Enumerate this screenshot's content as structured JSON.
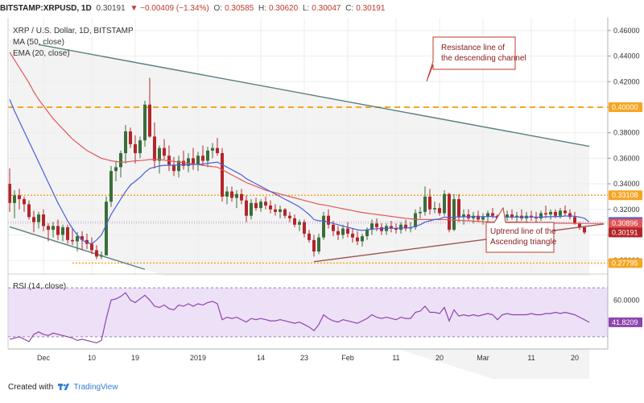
{
  "header": {
    "symbol": "BITSTAMP:XRPUSD, 1D",
    "last": "0.30191",
    "change": "▼ −0.00409 (−1.34%)",
    "o_label": "O:",
    "o_val": "0.30585",
    "h_label": "H:",
    "h_val": "0.30620",
    "l_label": "L:",
    "l_val": "0.30047",
    "c_label": "C:",
    "c_val": "0.30191"
  },
  "legend": {
    "title": "XRP / U.S. Dollar, 1D, BITSTAMP",
    "ma": "MA (50, close)",
    "ema": "EMA (20, close)"
  },
  "annotations": {
    "resistance": [
      "Resistance line of",
      "the descending channel"
    ],
    "uptrend": [
      "Uptrend line of the",
      "Ascending triangle"
    ]
  },
  "footer": {
    "prefix": "Created with",
    "brand": "TradingView"
  },
  "colors": {
    "bull": "#3a6e3a",
    "bear": "#b5242a",
    "ma": "#e15759",
    "ema": "#4a5fd8",
    "level": "#f5a623",
    "rsi": "#8e44ad"
  },
  "chart_data": {
    "type": "candlestick",
    "title": "XRP / U.S. Dollar, 1D, BITSTAMP",
    "y_axis": [
      "0.46000",
      "0.44000",
      "0.42000",
      "0.40000",
      "0.38000",
      "0.36000",
      "0.34000",
      "0.32000",
      "0.30000",
      "0.28000"
    ],
    "ylim": [
      0.27,
      0.47
    ],
    "x_ticks": [
      {
        "label": "Dec",
        "day": 7
      },
      {
        "label": "10",
        "day": 17
      },
      {
        "label": "19",
        "day": 26
      },
      {
        "label": "2019",
        "day": 39
      },
      {
        "label": "14",
        "day": 52
      },
      {
        "label": "23",
        "day": 61
      },
      {
        "label": "Feb",
        "day": 70
      },
      {
        "label": "11",
        "day": 80
      },
      {
        "label": "20",
        "day": 89
      },
      {
        "label": "Mar",
        "day": 98
      },
      {
        "label": "11",
        "day": 108
      },
      {
        "label": "20",
        "day": 117
      }
    ],
    "price_tags": [
      {
        "value": 0.4,
        "label": "0.40000",
        "color": "#f5a623"
      },
      {
        "value": 0.33108,
        "label": "0.33108",
        "color": "#f5a623"
      },
      {
        "value": 0.31018,
        "label": "0.31018",
        "color": "#4a5fd8"
      },
      {
        "value": 0.30896,
        "label": "0.30896",
        "color": "#e15759"
      },
      {
        "value": 0.30191,
        "label": "0.30191",
        "color": "#b5242a"
      },
      {
        "value": 0.27795,
        "label": "0.27795",
        "color": "#f5a623"
      }
    ],
    "levels": [
      {
        "value": 0.4,
        "style": "dashed"
      },
      {
        "value": 0.33108,
        "style": "dotted"
      },
      {
        "value": 0.27795,
        "style": "dotted"
      }
    ],
    "trendlines": [
      {
        "name": "Resistance line of the descending channel",
        "from": [
          6,
          0.449
        ],
        "to": [
          120,
          0.3693
        ]
      },
      {
        "name": "Lower channel line",
        "from": [
          0,
          0.3063
        ],
        "to": [
          28,
          0.273
        ]
      },
      {
        "name": "Uptrend line of the Ascending triangle",
        "from": [
          63,
          0.279
        ],
        "to": [
          123,
          0.3085
        ]
      }
    ],
    "ohlc": [
      [
        0.34,
        0.352,
        0.318,
        0.325
      ],
      [
        0.325,
        0.335,
        0.313,
        0.331
      ],
      [
        0.331,
        0.336,
        0.32,
        0.328
      ],
      [
        0.328,
        0.33,
        0.318,
        0.324
      ],
      [
        0.324,
        0.327,
        0.312,
        0.314
      ],
      [
        0.314,
        0.319,
        0.302,
        0.31
      ],
      [
        0.31,
        0.318,
        0.305,
        0.316
      ],
      [
        0.316,
        0.32,
        0.303,
        0.307
      ],
      [
        0.307,
        0.309,
        0.295,
        0.304
      ],
      [
        0.304,
        0.31,
        0.298,
        0.307
      ],
      [
        0.307,
        0.312,
        0.296,
        0.3
      ],
      [
        0.3,
        0.308,
        0.295,
        0.306
      ],
      [
        0.306,
        0.308,
        0.293,
        0.296
      ],
      [
        0.296,
        0.305,
        0.292,
        0.295
      ],
      [
        0.295,
        0.302,
        0.287,
        0.299
      ],
      [
        0.299,
        0.303,
        0.288,
        0.296
      ],
      [
        0.296,
        0.301,
        0.289,
        0.293
      ],
      [
        0.293,
        0.298,
        0.285,
        0.288
      ],
      [
        0.288,
        0.292,
        0.281,
        0.283
      ],
      [
        0.283,
        0.287,
        0.281,
        0.284
      ],
      [
        0.284,
        0.33,
        0.284,
        0.326
      ],
      [
        0.326,
        0.354,
        0.322,
        0.35
      ],
      [
        0.35,
        0.358,
        0.342,
        0.353
      ],
      [
        0.353,
        0.366,
        0.345,
        0.364
      ],
      [
        0.364,
        0.386,
        0.356,
        0.381
      ],
      [
        0.381,
        0.384,
        0.368,
        0.371
      ],
      [
        0.371,
        0.378,
        0.356,
        0.364
      ],
      [
        0.364,
        0.377,
        0.36,
        0.374
      ],
      [
        0.374,
        0.405,
        0.369,
        0.402
      ],
      [
        0.402,
        0.423,
        0.376,
        0.377
      ],
      [
        0.377,
        0.388,
        0.352,
        0.358
      ],
      [
        0.358,
        0.37,
        0.348,
        0.368
      ],
      [
        0.368,
        0.375,
        0.359,
        0.362
      ],
      [
        0.362,
        0.37,
        0.35,
        0.355
      ],
      [
        0.355,
        0.361,
        0.346,
        0.35
      ],
      [
        0.35,
        0.362,
        0.345,
        0.358
      ],
      [
        0.358,
        0.366,
        0.351,
        0.354
      ],
      [
        0.354,
        0.364,
        0.349,
        0.36
      ],
      [
        0.36,
        0.368,
        0.351,
        0.355
      ],
      [
        0.355,
        0.365,
        0.35,
        0.362
      ],
      [
        0.362,
        0.37,
        0.354,
        0.358
      ],
      [
        0.358,
        0.369,
        0.353,
        0.366
      ],
      [
        0.366,
        0.372,
        0.36,
        0.368
      ],
      [
        0.368,
        0.376,
        0.362,
        0.364
      ],
      [
        0.364,
        0.368,
        0.326,
        0.33
      ],
      [
        0.33,
        0.338,
        0.324,
        0.334
      ],
      [
        0.334,
        0.338,
        0.326,
        0.329
      ],
      [
        0.329,
        0.335,
        0.321,
        0.332
      ],
      [
        0.332,
        0.336,
        0.324,
        0.327
      ],
      [
        0.327,
        0.331,
        0.31,
        0.315
      ],
      [
        0.315,
        0.328,
        0.312,
        0.325
      ],
      [
        0.325,
        0.329,
        0.319,
        0.321
      ],
      [
        0.321,
        0.328,
        0.318,
        0.326
      ],
      [
        0.326,
        0.33,
        0.32,
        0.323
      ],
      [
        0.323,
        0.327,
        0.317,
        0.32
      ],
      [
        0.32,
        0.324,
        0.315,
        0.318
      ],
      [
        0.318,
        0.323,
        0.313,
        0.32
      ],
      [
        0.32,
        0.321,
        0.313,
        0.315
      ],
      [
        0.315,
        0.318,
        0.31,
        0.313
      ],
      [
        0.313,
        0.316,
        0.306,
        0.308
      ],
      [
        0.308,
        0.312,
        0.303,
        0.31
      ],
      [
        0.31,
        0.312,
        0.298,
        0.301
      ],
      [
        0.301,
        0.304,
        0.294,
        0.296
      ],
      [
        0.296,
        0.3,
        0.283,
        0.287
      ],
      [
        0.287,
        0.301,
        0.285,
        0.298
      ],
      [
        0.298,
        0.318,
        0.296,
        0.315
      ],
      [
        0.315,
        0.32,
        0.305,
        0.308
      ],
      [
        0.308,
        0.311,
        0.299,
        0.303
      ],
      [
        0.303,
        0.307,
        0.296,
        0.3
      ],
      [
        0.3,
        0.308,
        0.297,
        0.305
      ],
      [
        0.305,
        0.31,
        0.298,
        0.301
      ],
      [
        0.301,
        0.305,
        0.294,
        0.298
      ],
      [
        0.298,
        0.303,
        0.292,
        0.295
      ],
      [
        0.295,
        0.301,
        0.291,
        0.299
      ],
      [
        0.299,
        0.306,
        0.296,
        0.304
      ],
      [
        0.304,
        0.312,
        0.3,
        0.309
      ],
      [
        0.309,
        0.313,
        0.303,
        0.306
      ],
      [
        0.306,
        0.309,
        0.3,
        0.303
      ],
      [
        0.303,
        0.309,
        0.3,
        0.307
      ],
      [
        0.307,
        0.311,
        0.302,
        0.305
      ],
      [
        0.305,
        0.309,
        0.301,
        0.304
      ],
      [
        0.304,
        0.31,
        0.301,
        0.308
      ],
      [
        0.308,
        0.312,
        0.303,
        0.305
      ],
      [
        0.305,
        0.31,
        0.302,
        0.306
      ],
      [
        0.306,
        0.32,
        0.304,
        0.317
      ],
      [
        0.317,
        0.322,
        0.313,
        0.318
      ],
      [
        0.318,
        0.338,
        0.315,
        0.33
      ],
      [
        0.33,
        0.336,
        0.316,
        0.32
      ],
      [
        0.32,
        0.326,
        0.317,
        0.321
      ],
      [
        0.321,
        0.325,
        0.315,
        0.317
      ],
      [
        0.317,
        0.335,
        0.315,
        0.332
      ],
      [
        0.332,
        0.333,
        0.302,
        0.304
      ],
      [
        0.304,
        0.332,
        0.303,
        0.328
      ],
      [
        0.328,
        0.332,
        0.31,
        0.314
      ],
      [
        0.314,
        0.32,
        0.308,
        0.316
      ],
      [
        0.316,
        0.32,
        0.311,
        0.313
      ],
      [
        0.313,
        0.318,
        0.309,
        0.315
      ],
      [
        0.315,
        0.319,
        0.31,
        0.312
      ],
      [
        0.312,
        0.317,
        0.308,
        0.314
      ],
      [
        0.314,
        0.319,
        0.31,
        0.317
      ],
      [
        0.317,
        0.321,
        0.313,
        0.315
      ],
      [
        0.315,
        0.316,
        0.304,
        0.307
      ],
      [
        0.307,
        0.316,
        0.304,
        0.314
      ],
      [
        0.314,
        0.319,
        0.311,
        0.316
      ],
      [
        0.316,
        0.32,
        0.312,
        0.314
      ],
      [
        0.314,
        0.318,
        0.31,
        0.315
      ],
      [
        0.315,
        0.32,
        0.311,
        0.313
      ],
      [
        0.313,
        0.318,
        0.309,
        0.315
      ],
      [
        0.315,
        0.319,
        0.311,
        0.314
      ],
      [
        0.314,
        0.318,
        0.31,
        0.313
      ],
      [
        0.313,
        0.319,
        0.311,
        0.317
      ],
      [
        0.317,
        0.323,
        0.313,
        0.316
      ],
      [
        0.316,
        0.32,
        0.312,
        0.318
      ],
      [
        0.318,
        0.32,
        0.313,
        0.315
      ],
      [
        0.315,
        0.321,
        0.313,
        0.319
      ],
      [
        0.319,
        0.323,
        0.315,
        0.317
      ],
      [
        0.317,
        0.32,
        0.312,
        0.314
      ],
      [
        0.314,
        0.318,
        0.308,
        0.309
      ],
      [
        0.309,
        0.31,
        0.304,
        0.306
      ],
      [
        0.306,
        0.3062,
        0.3005,
        0.30191
      ]
    ],
    "ma50": [
      0.443,
      0.437,
      0.431,
      0.425,
      0.419,
      0.412,
      0.406,
      0.401,
      0.396,
      0.391,
      0.387,
      0.383,
      0.379,
      0.375,
      0.372,
      0.369,
      0.366,
      0.364,
      0.362,
      0.36,
      0.359,
      0.358,
      0.3575,
      0.357,
      0.357,
      0.3575,
      0.358,
      0.3582,
      0.3585,
      0.359,
      0.359,
      0.359,
      0.3585,
      0.358,
      0.3575,
      0.357,
      0.3565,
      0.356,
      0.3555,
      0.355,
      0.3545,
      0.354,
      0.3535,
      0.353,
      0.351,
      0.349,
      0.347,
      0.345,
      0.343,
      0.341,
      0.3395,
      0.338,
      0.3365,
      0.335,
      0.334,
      0.333,
      0.332,
      0.331,
      0.33,
      0.329,
      0.328,
      0.327,
      0.326,
      0.325,
      0.324,
      0.3235,
      0.3228,
      0.322,
      0.3212,
      0.3205,
      0.3198,
      0.319,
      0.3182,
      0.3176,
      0.317,
      0.3165,
      0.316,
      0.3155,
      0.315,
      0.3145,
      0.314,
      0.3135,
      0.313,
      0.3126,
      0.3122,
      0.312,
      0.312,
      0.312,
      0.312,
      0.312,
      0.312,
      0.3118,
      0.3116,
      0.3114,
      0.3112,
      0.311,
      0.3108,
      0.3106,
      0.3104,
      0.3102,
      0.31,
      0.31,
      0.31,
      0.31,
      0.31,
      0.31,
      0.3099,
      0.3098,
      0.3097,
      0.3096,
      0.3095,
      0.3094,
      0.3093,
      0.3092,
      0.3092,
      0.3091,
      0.3091,
      0.309,
      0.309,
      0.309,
      0.309,
      0.309,
      0.309,
      0.30896
    ],
    "ema20": [
      0.406,
      0.397,
      0.389,
      0.381,
      0.373,
      0.365,
      0.357,
      0.349,
      0.341,
      0.333,
      0.325,
      0.318,
      0.311,
      0.305,
      0.3,
      0.296,
      0.294,
      0.293,
      0.296,
      0.3,
      0.308,
      0.316,
      0.322,
      0.328,
      0.334,
      0.339,
      0.342,
      0.345,
      0.349,
      0.352,
      0.353,
      0.354,
      0.3545,
      0.3545,
      0.3545,
      0.3548,
      0.3548,
      0.355,
      0.355,
      0.3553,
      0.3555,
      0.356,
      0.3565,
      0.357,
      0.355,
      0.353,
      0.351,
      0.349,
      0.347,
      0.344,
      0.342,
      0.34,
      0.338,
      0.336,
      0.334,
      0.332,
      0.33,
      0.328,
      0.326,
      0.324,
      0.322,
      0.319,
      0.316,
      0.312,
      0.311,
      0.311,
      0.31,
      0.309,
      0.308,
      0.307,
      0.306,
      0.305,
      0.304,
      0.3035,
      0.304,
      0.3045,
      0.3048,
      0.305,
      0.3052,
      0.3052,
      0.3052,
      0.3054,
      0.3055,
      0.3056,
      0.3068,
      0.308,
      0.31,
      0.311,
      0.312,
      0.3125,
      0.314,
      0.3135,
      0.314,
      0.314,
      0.3142,
      0.3142,
      0.3143,
      0.3143,
      0.3143,
      0.3145,
      0.3145,
      0.3138,
      0.3138,
      0.314,
      0.314,
      0.314,
      0.314,
      0.314,
      0.314,
      0.314,
      0.3138,
      0.3142,
      0.3142,
      0.3144,
      0.3144,
      0.3148,
      0.3148,
      0.3146,
      0.314,
      0.313,
      0.31018
    ],
    "rsi": {
      "label": "RSI (14, close)",
      "y_axis": [
        "60.0000"
      ],
      "current_tag": "41.8209",
      "levels": [
        70,
        30
      ],
      "ylim": [
        20,
        80
      ],
      "values": [
        28,
        29,
        30,
        28,
        26,
        32,
        34,
        32,
        31,
        33,
        32,
        31,
        30,
        29,
        27,
        28,
        27,
        26,
        25,
        27,
        45,
        60,
        61,
        63,
        66,
        60,
        58,
        61,
        64,
        60,
        55,
        54,
        56,
        53,
        52,
        56,
        55,
        57,
        55,
        57,
        56,
        58,
        59,
        57,
        44,
        46,
        45,
        46,
        44,
        42,
        45,
        44,
        45,
        44,
        43,
        43,
        44,
        43,
        42,
        41,
        42,
        40,
        38,
        35,
        40,
        48,
        45,
        43,
        42,
        44,
        43,
        42,
        41,
        43,
        45,
        48,
        46,
        45,
        46,
        45,
        44,
        46,
        45,
        45,
        50,
        51,
        55,
        50,
        50,
        49,
        54,
        43,
        52,
        47,
        48,
        47,
        48,
        47,
        48,
        49,
        48,
        44,
        48,
        49,
        48,
        48,
        48,
        48,
        49,
        48,
        48,
        49,
        49,
        50,
        49,
        50,
        49,
        48,
        46,
        44,
        41.8209
      ]
    }
  }
}
